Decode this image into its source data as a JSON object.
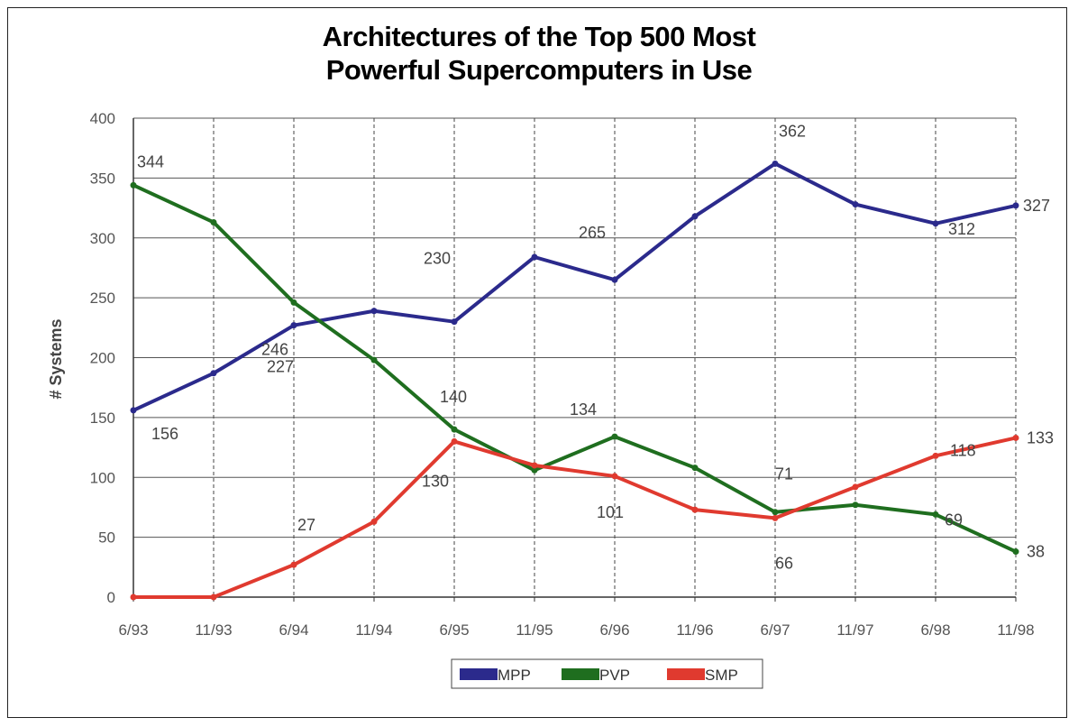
{
  "chart_data": {
    "type": "line",
    "title_lines": [
      "Architectures of the Top 500 Most",
      "Powerful Supercomputers in Use"
    ],
    "xlabel": "",
    "ylabel": "# Systems",
    "ylim": [
      0,
      400
    ],
    "yticks": [
      0,
      50,
      100,
      150,
      200,
      250,
      300,
      350,
      400
    ],
    "categories": [
      "6/93",
      "11/93",
      "6/94",
      "11/94",
      "6/95",
      "11/95",
      "6/96",
      "11/96",
      "6/97",
      "11/97",
      "6/98",
      "11/98"
    ],
    "grid": true,
    "legend_position": "bottom",
    "series": [
      {
        "name": "MPP",
        "color": "#2b2a8c",
        "values": [
          156,
          187,
          227,
          239,
          230,
          284,
          265,
          318,
          362,
          328,
          312,
          327
        ]
      },
      {
        "name": "PVP",
        "color": "#1f6e1f",
        "values": [
          344,
          313,
          246,
          198,
          140,
          106,
          134,
          108,
          71,
          77,
          69,
          38
        ]
      },
      {
        "name": "SMP",
        "color": "#e03a2f",
        "values": [
          0,
          0,
          27,
          63,
          130,
          110,
          101,
          73,
          66,
          92,
          118,
          133
        ]
      }
    ],
    "annotations": [
      {
        "series": "MPP",
        "index": 0,
        "text": "156"
      },
      {
        "series": "MPP",
        "index": 2,
        "text": "227"
      },
      {
        "series": "MPP",
        "index": 4,
        "text": "230"
      },
      {
        "series": "MPP",
        "index": 6,
        "text": "265"
      },
      {
        "series": "MPP",
        "index": 8,
        "text": "362"
      },
      {
        "series": "MPP",
        "index": 10,
        "text": "312"
      },
      {
        "series": "MPP",
        "index": 11,
        "text": "327"
      },
      {
        "series": "PVP",
        "index": 0,
        "text": "344"
      },
      {
        "series": "PVP",
        "index": 2,
        "text": "246"
      },
      {
        "series": "PVP",
        "index": 4,
        "text": "140"
      },
      {
        "series": "PVP",
        "index": 6,
        "text": "134"
      },
      {
        "series": "PVP",
        "index": 8,
        "text": "71"
      },
      {
        "series": "PVP",
        "index": 10,
        "text": "69"
      },
      {
        "series": "PVP",
        "index": 11,
        "text": "38"
      },
      {
        "series": "SMP",
        "index": 2,
        "text": "27"
      },
      {
        "series": "SMP",
        "index": 4,
        "text": "130"
      },
      {
        "series": "SMP",
        "index": 6,
        "text": "101"
      },
      {
        "series": "SMP",
        "index": 8,
        "text": "66"
      },
      {
        "series": "SMP",
        "index": 10,
        "text": "118"
      },
      {
        "series": "SMP",
        "index": 11,
        "text": "133"
      }
    ]
  }
}
